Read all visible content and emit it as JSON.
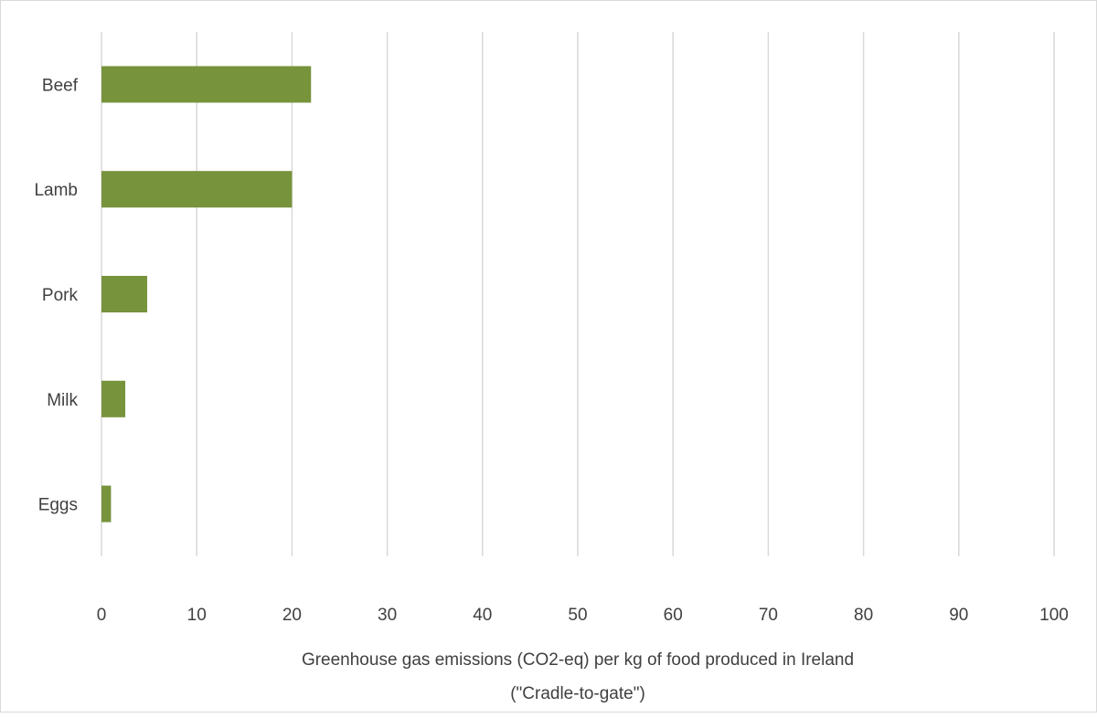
{
  "chart_data": {
    "type": "bar",
    "orientation": "horizontal",
    "categories": [
      "Beef",
      "Lamb",
      "Pork",
      "Milk",
      "Eggs"
    ],
    "values": [
      22,
      20,
      4.8,
      2.5,
      1.0
    ],
    "xlabel": "Greenhouse gas emissions (CO2-eq) per kg of food produced in Ireland",
    "xlabel_line2": "(\"Cradle-to-gate\")",
    "xlim": [
      0,
      100
    ],
    "xticks": [
      0,
      10,
      20,
      30,
      40,
      50,
      60,
      70,
      80,
      90,
      100
    ],
    "grid": "vertical",
    "legend": "none",
    "bar_color": "#77933c"
  }
}
